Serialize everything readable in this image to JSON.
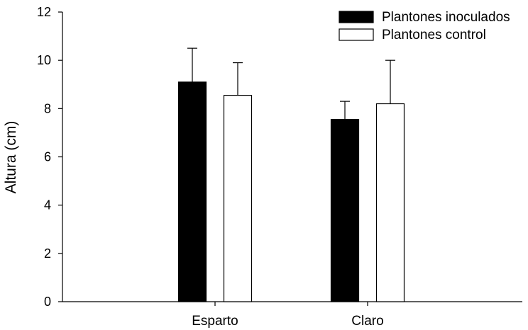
{
  "chart_data": {
    "type": "bar",
    "categories": [
      "Esparto",
      "Claro"
    ],
    "series": [
      {
        "name": "Plantones inoculados",
        "values": [
          9.1,
          7.55
        ],
        "errors": [
          1.4,
          0.75
        ],
        "color": "#000000"
      },
      {
        "name": "Plantones control",
        "values": [
          8.55,
          8.2
        ],
        "errors": [
          1.35,
          1.8
        ],
        "color": "#ffffff"
      }
    ],
    "ylabel": "Altura (cm)",
    "ylim": [
      0,
      12
    ],
    "yticks": [
      "0",
      "2",
      "4",
      "6",
      "8",
      "10",
      "12"
    ],
    "grid": false,
    "legend_position": "top-right"
  }
}
